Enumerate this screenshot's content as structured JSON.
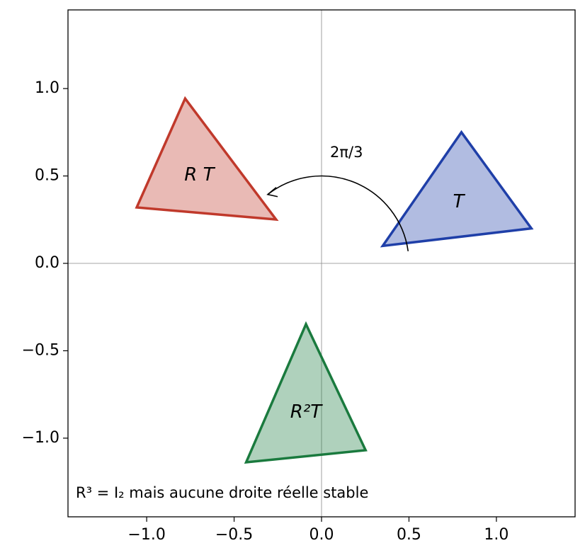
{
  "chart_data": {
    "type": "polygon",
    "xlim": [
      -1.45,
      1.45
    ],
    "ylim": [
      -1.45,
      1.45
    ],
    "xticks": [
      {
        "value": -1,
        "label": "−1.0"
      },
      {
        "value": -0.5,
        "label": "−0.5"
      },
      {
        "value": 0,
        "label": "0.0"
      },
      0.5,
      {
        "value": 1,
        "label": "1.0"
      }
    ],
    "yticks": [
      {
        "value": -1,
        "label": "−1.0"
      },
      {
        "value": -0.5,
        "label": "−0.5"
      },
      {
        "value": 0,
        "label": "0.0"
      },
      0.5,
      {
        "value": 1,
        "label": "1.0"
      }
    ],
    "zero_lines": true,
    "series": [
      {
        "name": "T",
        "color": "#1f3fa8",
        "x": [
          0.8,
          1.2,
          0.35
        ],
        "y": [
          0.75,
          0.2,
          0.1
        ]
      },
      {
        "name": "R T",
        "color": "#c0392b",
        "x": [
          -0.78,
          -0.26,
          -1.057
        ],
        "y": [
          0.943,
          0.251,
          0.32
        ]
      },
      {
        "name": "R²T",
        "color": "#1a7a3e",
        "x": [
          -0.089,
          0.252,
          -0.431
        ],
        "y": [
          -0.348,
          -1.069,
          -1.138
        ]
      }
    ],
    "annotations": [
      "2π/3",
      "R³ = I₂ mais aucune droite réelle stable"
    ]
  }
}
